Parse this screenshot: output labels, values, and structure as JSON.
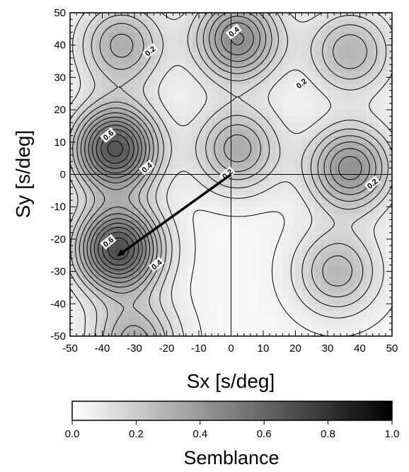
{
  "chart_data": {
    "type": "heatmap",
    "xlabel": "Sx [s/deg]",
    "ylabel": "Sy [s/deg]",
    "xlim": [
      -50,
      50
    ],
    "ylim": [
      -50,
      50
    ],
    "x_ticks": [
      -50,
      -40,
      -30,
      -20,
      -10,
      0,
      10,
      20,
      30,
      40,
      50
    ],
    "y_ticks": [
      -50,
      -40,
      -30,
      -20,
      -10,
      0,
      10,
      20,
      30,
      40,
      50
    ],
    "crosshair": {
      "x": 0,
      "y": 0
    },
    "contour_interval": 0.05,
    "colormap": {
      "low": "#ffffff",
      "high": "#000000"
    },
    "peaks": [
      {
        "x": -35,
        "y": -23,
        "value": 0.66
      },
      {
        "x": -36,
        "y": 8,
        "value": 0.64
      },
      {
        "x": 2,
        "y": 42,
        "value": 0.43
      },
      {
        "x": 37,
        "y": 2,
        "value": 0.4
      },
      {
        "x": -34,
        "y": 40,
        "value": 0.29
      },
      {
        "x": 37,
        "y": 38,
        "value": 0.26
      },
      {
        "x": 2,
        "y": 8,
        "value": 0.3
      },
      {
        "x": 33,
        "y": -30,
        "value": 0.25
      },
      {
        "x": -30,
        "y": -52,
        "value": 0.3
      }
    ],
    "contour_labels": [
      {
        "text": "0.2",
        "x": -25,
        "y": 38
      },
      {
        "text": "0.4",
        "x": 1,
        "y": 44
      },
      {
        "text": "0.2",
        "x": 22,
        "y": 28
      },
      {
        "text": "0.6",
        "x": -38,
        "y": 12
      },
      {
        "text": "0.4",
        "x": -26,
        "y": 2
      },
      {
        "text": "0.2",
        "x": -1,
        "y": 0
      },
      {
        "text": "0.2",
        "x": 44,
        "y": -3
      },
      {
        "text": "0.6",
        "x": -38,
        "y": -21
      },
      {
        "text": "0.4",
        "x": -23,
        "y": -28
      }
    ],
    "arrow": {
      "from": [
        0,
        0
      ],
      "to": [
        -35,
        -25
      ]
    },
    "colorbar": {
      "title": "Semblance",
      "range": [
        0.0,
        1.0
      ],
      "ticks": [
        "0.0",
        "0.2",
        "0.4",
        "0.6",
        "0.8",
        "1.0"
      ]
    }
  }
}
